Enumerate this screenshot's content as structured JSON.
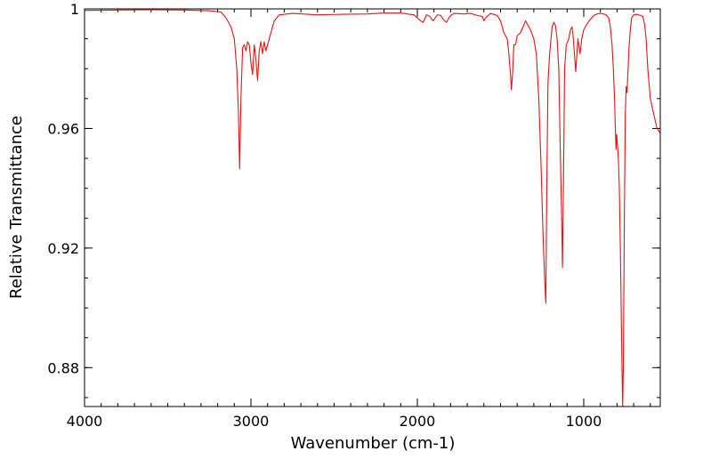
{
  "chart_data": {
    "type": "line",
    "title": "",
    "xlabel": "Wavenumber (cm-1)",
    "ylabel": "Relative Transmittance",
    "xlim": [
      4000,
      540
    ],
    "ylim": [
      0.867,
      1.0
    ],
    "x_reversed": true,
    "x_ticks": [
      4000,
      3000,
      2000,
      1000
    ],
    "x_tick_labels": [
      "4000",
      "3000",
      "2000",
      "1000"
    ],
    "y_ticks": [
      1.0,
      0.96,
      0.92,
      0.88
    ],
    "y_tick_labels": [
      "1",
      "0.96",
      "0.92",
      "0.88"
    ],
    "x_minor_step": 100,
    "y_minor_step": 0.01,
    "grid": false,
    "legend": "none",
    "series": [
      {
        "color": "#ee1111",
        "points": [
          [
            4000,
            0.9995
          ],
          [
            3800,
            0.9996
          ],
          [
            3600,
            0.9997
          ],
          [
            3400,
            0.9996
          ],
          [
            3250,
            0.9994
          ],
          [
            3180,
            0.999
          ],
          [
            3150,
            0.997
          ],
          [
            3120,
            0.994
          ],
          [
            3100,
            0.99
          ],
          [
            3085,
            0.98
          ],
          [
            3075,
            0.965
          ],
          [
            3068,
            0.9465
          ],
          [
            3060,
            0.97
          ],
          [
            3050,
            0.987
          ],
          [
            3040,
            0.988
          ],
          [
            3030,
            0.986
          ],
          [
            3020,
            0.989
          ],
          [
            3010,
            0.988
          ],
          [
            3000,
            0.982
          ],
          [
            2990,
            0.978
          ],
          [
            2980,
            0.988
          ],
          [
            2970,
            0.983
          ],
          [
            2960,
            0.976
          ],
          [
            2950,
            0.986
          ],
          [
            2940,
            0.989
          ],
          [
            2930,
            0.985
          ],
          [
            2920,
            0.989
          ],
          [
            2910,
            0.986
          ],
          [
            2900,
            0.988
          ],
          [
            2880,
            0.992
          ],
          [
            2860,
            0.996
          ],
          [
            2830,
            0.998
          ],
          [
            2750,
            0.9985
          ],
          [
            2600,
            0.998
          ],
          [
            2450,
            0.9982
          ],
          [
            2300,
            0.9983
          ],
          [
            2200,
            0.9986
          ],
          [
            2100,
            0.9986
          ],
          [
            2020,
            0.998
          ],
          [
            1980,
            0.996
          ],
          [
            1965,
            0.9955
          ],
          [
            1945,
            0.998
          ],
          [
            1925,
            0.9975
          ],
          [
            1905,
            0.996
          ],
          [
            1880,
            0.998
          ],
          [
            1860,
            0.9978
          ],
          [
            1845,
            0.9965
          ],
          [
            1825,
            0.9955
          ],
          [
            1805,
            0.9975
          ],
          [
            1780,
            0.9985
          ],
          [
            1720,
            0.9983
          ],
          [
            1680,
            0.9985
          ],
          [
            1640,
            0.9978
          ],
          [
            1610,
            0.9975
          ],
          [
            1600,
            0.996
          ],
          [
            1590,
            0.997
          ],
          [
            1560,
            0.9985
          ],
          [
            1520,
            0.9978
          ],
          [
            1500,
            0.996
          ],
          [
            1480,
            0.992
          ],
          [
            1460,
            0.99
          ],
          [
            1450,
            0.985
          ],
          [
            1440,
            0.978
          ],
          [
            1435,
            0.973
          ],
          [
            1428,
            0.978
          ],
          [
            1420,
            0.988
          ],
          [
            1410,
            0.988
          ],
          [
            1400,
            0.991
          ],
          [
            1380,
            0.992
          ],
          [
            1365,
            0.994
          ],
          [
            1350,
            0.996
          ],
          [
            1340,
            0.995
          ],
          [
            1320,
            0.993
          ],
          [
            1300,
            0.99
          ],
          [
            1285,
            0.985
          ],
          [
            1270,
            0.97
          ],
          [
            1255,
            0.945
          ],
          [
            1245,
            0.925
          ],
          [
            1235,
            0.91
          ],
          [
            1228,
            0.9015
          ],
          [
            1222,
            0.94
          ],
          [
            1215,
            0.975
          ],
          [
            1205,
            0.985
          ],
          [
            1190,
            0.994
          ],
          [
            1180,
            0.9955
          ],
          [
            1170,
            0.9945
          ],
          [
            1160,
            0.99
          ],
          [
            1150,
            0.98
          ],
          [
            1140,
            0.95
          ],
          [
            1132,
            0.928
          ],
          [
            1128,
            0.9135
          ],
          [
            1122,
            0.94
          ],
          [
            1115,
            0.98
          ],
          [
            1105,
            0.988
          ],
          [
            1090,
            0.99
          ],
          [
            1080,
            0.993
          ],
          [
            1070,
            0.994
          ],
          [
            1062,
            0.99
          ],
          [
            1055,
            0.984
          ],
          [
            1048,
            0.979
          ],
          [
            1040,
            0.986
          ],
          [
            1035,
            0.99
          ],
          [
            1030,
            0.988
          ],
          [
            1022,
            0.985
          ],
          [
            1012,
            0.99
          ],
          [
            1000,
            0.993
          ],
          [
            990,
            0.994
          ],
          [
            980,
            0.995
          ],
          [
            960,
            0.9965
          ],
          [
            940,
            0.9978
          ],
          [
            920,
            0.9983
          ],
          [
            900,
            0.9985
          ],
          [
            880,
            0.9983
          ],
          [
            865,
            0.998
          ],
          [
            850,
            0.997
          ],
          [
            840,
            0.994
          ],
          [
            830,
            0.988
          ],
          [
            822,
            0.98
          ],
          [
            815,
            0.97
          ],
          [
            810,
            0.96
          ],
          [
            806,
            0.953
          ],
          [
            802,
            0.958
          ],
          [
            798,
            0.955
          ],
          [
            792,
            0.95
          ],
          [
            786,
            0.94
          ],
          [
            780,
            0.92
          ],
          [
            775,
            0.9
          ],
          [
            770,
            0.88
          ],
          [
            766,
            0.867
          ],
          [
            762,
            0.88
          ],
          [
            756,
            0.93
          ],
          [
            750,
            0.965
          ],
          [
            745,
            0.974
          ],
          [
            740,
            0.972
          ],
          [
            735,
            0.978
          ],
          [
            728,
            0.987
          ],
          [
            720,
            0.993
          ],
          [
            712,
            0.997
          ],
          [
            700,
            0.998
          ],
          [
            680,
            0.9982
          ],
          [
            660,
            0.9978
          ],
          [
            645,
            0.9975
          ],
          [
            635,
            0.995
          ],
          [
            625,
            0.99
          ],
          [
            615,
            0.98
          ],
          [
            600,
            0.97
          ],
          [
            560,
            0.96
          ],
          [
            540,
            0.9585
          ]
        ]
      }
    ]
  }
}
